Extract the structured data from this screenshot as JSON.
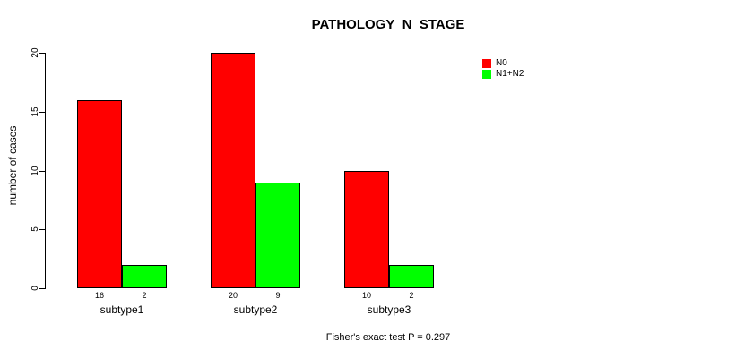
{
  "chart_data": {
    "type": "bar",
    "title": "PATHOLOGY_N_STAGE",
    "xlabel": "",
    "ylabel": "number of cases",
    "categories": [
      "subtype1",
      "subtype2",
      "subtype3"
    ],
    "series": [
      {
        "name": "N0",
        "color": "#ff0000",
        "values": [
          16,
          20,
          10
        ]
      },
      {
        "name": "N1+N2",
        "color": "#00ff00",
        "values": [
          2,
          9,
          2
        ]
      }
    ],
    "ylim": [
      0,
      20
    ],
    "yticks": [
      0,
      5,
      10,
      15,
      20
    ],
    "grid": false,
    "legend_position": "top-right",
    "bar_value_labels": true,
    "annotation": "Fisher's exact test P = 0.297",
    "colors": {
      "background": "#ffffff",
      "axis": "#000000",
      "text": "#000000"
    }
  }
}
